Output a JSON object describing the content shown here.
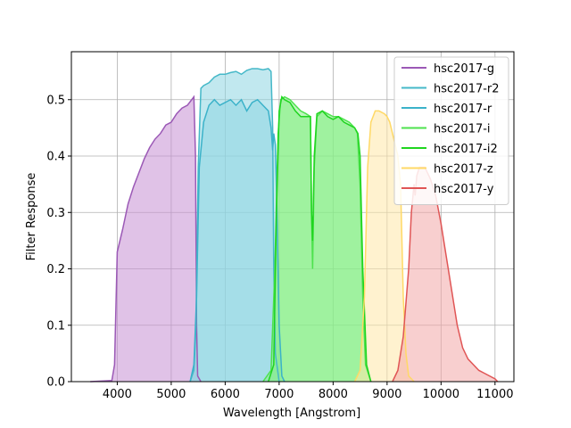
{
  "chart_data": {
    "type": "area",
    "xlabel": "Wavelength [Angstrom]",
    "ylabel": "Filter Response",
    "xlim": [
      3150,
      11350
    ],
    "ylim": [
      0,
      0.585
    ],
    "grid": true,
    "legend_position": "top-right",
    "x_ticks": [
      4000,
      5000,
      6000,
      7000,
      8000,
      9000,
      10000,
      11000
    ],
    "y_ticks": [
      0.0,
      0.1,
      0.2,
      0.3,
      0.4,
      0.5
    ],
    "x_tick_labels": [
      "4000",
      "5000",
      "6000",
      "7000",
      "8000",
      "9000",
      "10000",
      "11000"
    ],
    "y_tick_labels": [
      "0.0",
      "0.1",
      "0.2",
      "0.3",
      "0.4",
      "0.5"
    ],
    "series": [
      {
        "name": "hsc2017-g",
        "color": "#9B59B6",
        "fill": "#C78FD4",
        "points": [
          [
            3500,
            0
          ],
          [
            3900,
            0.002
          ],
          [
            3950,
            0.03
          ],
          [
            4000,
            0.23
          ],
          [
            4100,
            0.27
          ],
          [
            4200,
            0.315
          ],
          [
            4300,
            0.345
          ],
          [
            4400,
            0.37
          ],
          [
            4500,
            0.395
          ],
          [
            4600,
            0.415
          ],
          [
            4700,
            0.43
          ],
          [
            4800,
            0.44
          ],
          [
            4900,
            0.455
          ],
          [
            5000,
            0.46
          ],
          [
            5100,
            0.475
          ],
          [
            5200,
            0.485
          ],
          [
            5300,
            0.49
          ],
          [
            5380,
            0.5
          ],
          [
            5420,
            0.505
          ],
          [
            5450,
            0.4
          ],
          [
            5470,
            0.1
          ],
          [
            5490,
            0.01
          ],
          [
            5550,
            0
          ]
        ]
      },
      {
        "name": "hsc2017-r2",
        "color": "#45B8C8",
        "fill": "#8ED5E2",
        "points": [
          [
            5350,
            0
          ],
          [
            5420,
            0.02
          ],
          [
            5460,
            0.1
          ],
          [
            5500,
            0.38
          ],
          [
            5550,
            0.52
          ],
          [
            5600,
            0.525
          ],
          [
            5700,
            0.53
          ],
          [
            5800,
            0.54
          ],
          [
            5900,
            0.545
          ],
          [
            6000,
            0.545
          ],
          [
            6100,
            0.548
          ],
          [
            6200,
            0.55
          ],
          [
            6300,
            0.545
          ],
          [
            6400,
            0.552
          ],
          [
            6500,
            0.555
          ],
          [
            6600,
            0.555
          ],
          [
            6700,
            0.553
          ],
          [
            6800,
            0.555
          ],
          [
            6850,
            0.55
          ],
          [
            6880,
            0.45
          ],
          [
            6900,
            0.2
          ],
          [
            6930,
            0.05
          ],
          [
            7000,
            0
          ]
        ]
      },
      {
        "name": "hsc2017-r",
        "color": "#3BB2C9",
        "fill": "#8ED5E2",
        "points": [
          [
            5350,
            0
          ],
          [
            5420,
            0.03
          ],
          [
            5470,
            0.15
          ],
          [
            5520,
            0.38
          ],
          [
            5600,
            0.46
          ],
          [
            5700,
            0.49
          ],
          [
            5800,
            0.5
          ],
          [
            5900,
            0.49
          ],
          [
            6000,
            0.495
          ],
          [
            6100,
            0.5
          ],
          [
            6200,
            0.49
          ],
          [
            6300,
            0.5
          ],
          [
            6400,
            0.48
          ],
          [
            6500,
            0.495
          ],
          [
            6600,
            0.5
          ],
          [
            6700,
            0.49
          ],
          [
            6800,
            0.48
          ],
          [
            6850,
            0.45
          ],
          [
            6880,
            0.41
          ],
          [
            6900,
            0.44
          ],
          [
            6930,
            0.42
          ],
          [
            6960,
            0.3
          ],
          [
            7000,
            0.1
          ],
          [
            7050,
            0.01
          ],
          [
            7100,
            0
          ]
        ]
      },
      {
        "name": "hsc2017-i",
        "color": "#4EE24E",
        "fill": "#86EE86",
        "points": [
          [
            6700,
            0
          ],
          [
            6850,
            0.02
          ],
          [
            6920,
            0.2
          ],
          [
            6980,
            0.44
          ],
          [
            7030,
            0.5
          ],
          [
            7100,
            0.505
          ],
          [
            7200,
            0.5
          ],
          [
            7300,
            0.49
          ],
          [
            7400,
            0.48
          ],
          [
            7500,
            0.475
          ],
          [
            7580,
            0.47
          ],
          [
            7600,
            0.3
          ],
          [
            7620,
            0.2
          ],
          [
            7650,
            0.38
          ],
          [
            7700,
            0.47
          ],
          [
            7800,
            0.48
          ],
          [
            7900,
            0.475
          ],
          [
            8000,
            0.47
          ],
          [
            8100,
            0.47
          ],
          [
            8200,
            0.465
          ],
          [
            8300,
            0.46
          ],
          [
            8400,
            0.45
          ],
          [
            8450,
            0.44
          ],
          [
            8500,
            0.35
          ],
          [
            8550,
            0.15
          ],
          [
            8600,
            0.03
          ],
          [
            8700,
            0
          ]
        ]
      },
      {
        "name": "hsc2017-i2",
        "color": "#1FD51F",
        "fill": "#86EE86",
        "points": [
          [
            6800,
            0
          ],
          [
            6900,
            0.03
          ],
          [
            6950,
            0.3
          ],
          [
            7000,
            0.48
          ],
          [
            7050,
            0.505
          ],
          [
            7100,
            0.5
          ],
          [
            7200,
            0.495
          ],
          [
            7300,
            0.48
          ],
          [
            7400,
            0.47
          ],
          [
            7500,
            0.47
          ],
          [
            7580,
            0.47
          ],
          [
            7600,
            0.3
          ],
          [
            7620,
            0.25
          ],
          [
            7650,
            0.4
          ],
          [
            7700,
            0.475
          ],
          [
            7800,
            0.48
          ],
          [
            7900,
            0.47
          ],
          [
            8000,
            0.465
          ],
          [
            8100,
            0.47
          ],
          [
            8200,
            0.46
          ],
          [
            8300,
            0.455
          ],
          [
            8400,
            0.45
          ],
          [
            8460,
            0.44
          ],
          [
            8500,
            0.4
          ],
          [
            8550,
            0.2
          ],
          [
            8620,
            0.03
          ],
          [
            8700,
            0
          ]
        ]
      },
      {
        "name": "hsc2017-z",
        "color": "#FFD966",
        "fill": "#FFE7A8",
        "points": [
          [
            8400,
            0
          ],
          [
            8500,
            0.02
          ],
          [
            8580,
            0.15
          ],
          [
            8640,
            0.38
          ],
          [
            8700,
            0.46
          ],
          [
            8780,
            0.48
          ],
          [
            8850,
            0.48
          ],
          [
            8950,
            0.475
          ],
          [
            9000,
            0.47
          ],
          [
            9050,
            0.46
          ],
          [
            9100,
            0.44
          ],
          [
            9150,
            0.42
          ],
          [
            9200,
            0.4
          ],
          [
            9250,
            0.35
          ],
          [
            9300,
            0.15
          ],
          [
            9350,
            0.05
          ],
          [
            9400,
            0.01
          ],
          [
            9500,
            0
          ]
        ]
      },
      {
        "name": "hsc2017-y",
        "color": "#E05555",
        "fill": "#F2A8A8",
        "points": [
          [
            9100,
            0
          ],
          [
            9200,
            0.02
          ],
          [
            9300,
            0.08
          ],
          [
            9400,
            0.2
          ],
          [
            9450,
            0.3
          ],
          [
            9480,
            0.33
          ],
          [
            9500,
            0.35
          ],
          [
            9520,
            0.33
          ],
          [
            9550,
            0.365
          ],
          [
            9600,
            0.38
          ],
          [
            9700,
            0.38
          ],
          [
            9800,
            0.36
          ],
          [
            9900,
            0.33
          ],
          [
            10000,
            0.28
          ],
          [
            10100,
            0.22
          ],
          [
            10200,
            0.16
          ],
          [
            10300,
            0.1
          ],
          [
            10400,
            0.06
          ],
          [
            10500,
            0.04
          ],
          [
            10600,
            0.03
          ],
          [
            10700,
            0.02
          ],
          [
            10800,
            0.015
          ],
          [
            11000,
            0.005
          ],
          [
            11050,
            0
          ]
        ]
      }
    ]
  }
}
